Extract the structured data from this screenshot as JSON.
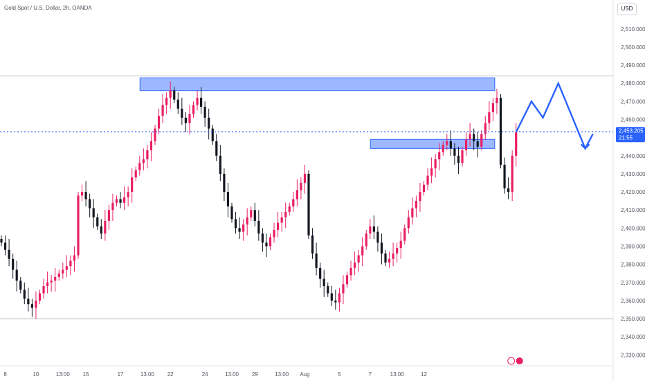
{
  "header": {
    "title": "Gold Spot / U.S. Dollar, 2h, OANDA",
    "currency": "USD"
  },
  "price_label": {
    "price": "2,453.205",
    "countdown": "21:55"
  },
  "colors": {
    "up": "#e91e63",
    "down": "#131722",
    "zone": "#2962ff",
    "arrow": "#2962ff",
    "dotted": "#2962ff"
  },
  "chart_data": {
    "type": "candlestick",
    "title": "Gold Spot / U.S. Dollar, 2h, OANDA",
    "ylim": [
      2324,
      2526
    ],
    "yticks": [
      2330,
      2340,
      2350,
      2360,
      2370,
      2380,
      2390,
      2400,
      2410,
      2420,
      2430,
      2440,
      2450,
      2460,
      2470,
      2480,
      2490,
      2500,
      2510
    ],
    "ytick_labels": [
      "2,330.000",
      "2,340.000",
      "2,350.000",
      "2,360.000",
      "2,370.000",
      "2,380.000",
      "2,390.000",
      "2,400.000",
      "2,410.000",
      "2,420.000",
      "2,430.000",
      "2,440.000",
      "2,450.000",
      "2,460.000",
      "2,470.000",
      "2,480.000",
      "2,490.000",
      "2,500.000",
      "2,510.000"
    ],
    "xticks": [
      {
        "label": "8",
        "bar": 1
      },
      {
        "label": "10",
        "bar": 9
      },
      {
        "label": "13:00",
        "bar": 16
      },
      {
        "label": "15",
        "bar": 22
      },
      {
        "label": "17",
        "bar": 31
      },
      {
        "label": "13:00",
        "bar": 38
      },
      {
        "label": "22",
        "bar": 44
      },
      {
        "label": "24",
        "bar": 53
      },
      {
        "label": "13:00",
        "bar": 60
      },
      {
        "label": "29",
        "bar": 66
      },
      {
        "label": "13:00",
        "bar": 73
      },
      {
        "label": "Aug",
        "bar": 79
      },
      {
        "label": "5",
        "bar": 88
      },
      {
        "label": "7",
        "bar": 96
      },
      {
        "label": "13:00",
        "bar": 103
      },
      {
        "label": "12",
        "bar": 110
      }
    ],
    "bars_per_x_unit_note": "",
    "candles_close": [
      2392,
      2388,
      2383,
      2377,
      2371,
      2366,
      2361,
      2358,
      2356,
      2360,
      2364,
      2368,
      2370,
      2371,
      2373,
      2375,
      2377,
      2379,
      2382,
      2385,
      2418,
      2420,
      2416,
      2411,
      2406,
      2401,
      2397,
      2404,
      2410,
      2414,
      2416,
      2414,
      2417,
      2420,
      2428,
      2432,
      2436,
      2438,
      2443,
      2448,
      2455,
      2462,
      2468,
      2472,
      2476,
      2471,
      2466,
      2461,
      2458,
      2463,
      2468,
      2472,
      2467,
      2461,
      2455,
      2448,
      2440,
      2430,
      2420,
      2412,
      2405,
      2400,
      2398,
      2402,
      2406,
      2410,
      2404,
      2397,
      2392,
      2390,
      2395,
      2399,
      2403,
      2406,
      2409,
      2412,
      2416,
      2421,
      2425,
      2430,
      2396,
      2386,
      2378,
      2372,
      2368,
      2364,
      2360,
      2359,
      2364,
      2369,
      2374,
      2378,
      2381,
      2385,
      2390,
      2397,
      2401,
      2398,
      2392,
      2386,
      2381,
      2383,
      2386,
      2389,
      2393,
      2400,
      2406,
      2411,
      2415,
      2420,
      2424,
      2429,
      2433,
      2438,
      2442,
      2446,
      2448,
      2444,
      2440,
      2436,
      2443,
      2449,
      2452,
      2448,
      2445,
      2452,
      2458,
      2464,
      2469,
      2472,
      2435,
      2422,
      2420,
      2440,
      2453
    ],
    "zones": [
      {
        "from_bar": 35,
        "to_bar": 127,
        "low": 2476,
        "high": 2483
      },
      {
        "from_bar": 95,
        "to_bar": 127,
        "low": 2444,
        "high": 2449
      }
    ],
    "horizontal_lines": [
      2484,
      2350
    ],
    "dotted_line": 2453.205,
    "projection_path": [
      {
        "bar_offset": 0,
        "price": 2453
      },
      {
        "bar_offset": 4,
        "price": 2470
      },
      {
        "bar_offset": 7,
        "price": 2461
      },
      {
        "bar_offset": 11,
        "price": 2480
      },
      {
        "bar_offset": 18,
        "price": 2444
      },
      {
        "bar_offset": 20,
        "price": 2452
      }
    ]
  }
}
